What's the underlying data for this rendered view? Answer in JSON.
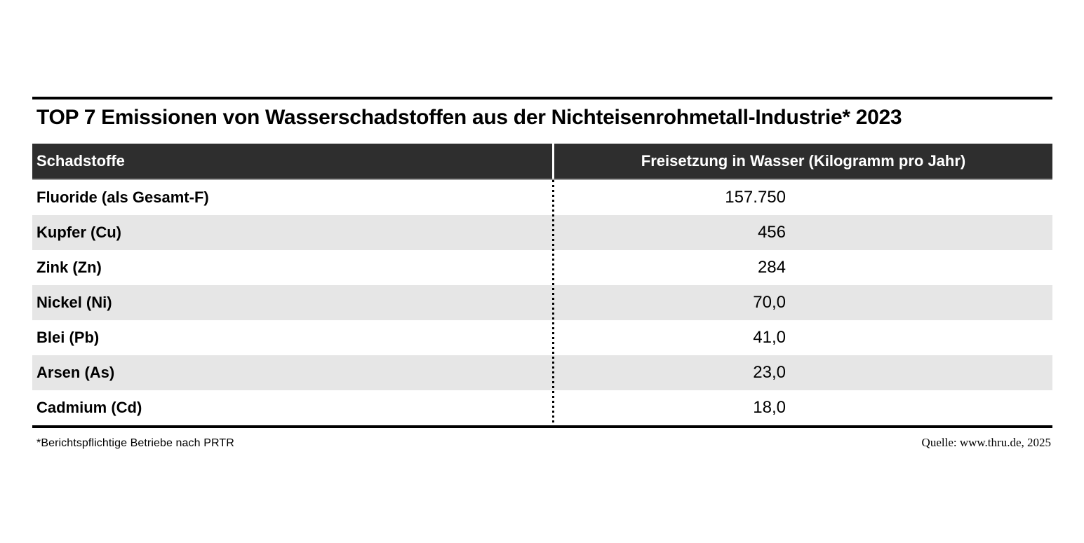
{
  "title": "TOP 7 Emissionen von Wasserschadstoffen aus der Nichteisenrohmetall-Industrie* 2023",
  "table": {
    "headers": [
      "Schadstoffe",
      "Freisetzung in Wasser (Kilogramm pro Jahr)"
    ],
    "rows": [
      {
        "label": "Fluoride (als Gesamt-F)",
        "value": "157.750"
      },
      {
        "label": "Kupfer (Cu)",
        "value": "456"
      },
      {
        "label": "Zink (Zn)",
        "value": "284"
      },
      {
        "label": "Nickel (Ni)",
        "value": "70,0"
      },
      {
        "label": "Blei (Pb)",
        "value": "41,0"
      },
      {
        "label": "Arsen (As)",
        "value": "23,0"
      },
      {
        "label": "Cadmium (Cd)",
        "value": "18,0"
      }
    ]
  },
  "footnote": "*Berichtspflichtige Betriebe nach PRTR",
  "source": "Quelle: www.thru.de, 2025",
  "colors": {
    "header_bg": "#2e2e2e",
    "header_text": "#ffffff",
    "row_alt_bg": "#e6e6e6",
    "rule": "#000000"
  },
  "chart_data": {
    "type": "table",
    "title": "TOP 7 Emissionen von Wasserschadstoffen aus der Nichteisenrohmetall-Industrie* 2023",
    "columns": [
      "Schadstoffe",
      "Freisetzung in Wasser (Kilogramm pro Jahr)"
    ],
    "categories": [
      "Fluoride (als Gesamt-F)",
      "Kupfer (Cu)",
      "Zink (Zn)",
      "Nickel (Ni)",
      "Blei (Pb)",
      "Arsen (As)",
      "Cadmium (Cd)"
    ],
    "values": [
      157750,
      456,
      284,
      70.0,
      41.0,
      23.0,
      18.0
    ],
    "values_display": [
      "157.750",
      "456",
      "284",
      "70,0",
      "41,0",
      "23,0",
      "18,0"
    ],
    "unit": "Kilogramm pro Jahr",
    "footnote": "*Berichtspflichtige Betriebe nach PRTR",
    "source": "Quelle: www.thru.de, 2025",
    "layout": {
      "row_striping": true,
      "value_alignment": "right",
      "grid": "none"
    }
  }
}
